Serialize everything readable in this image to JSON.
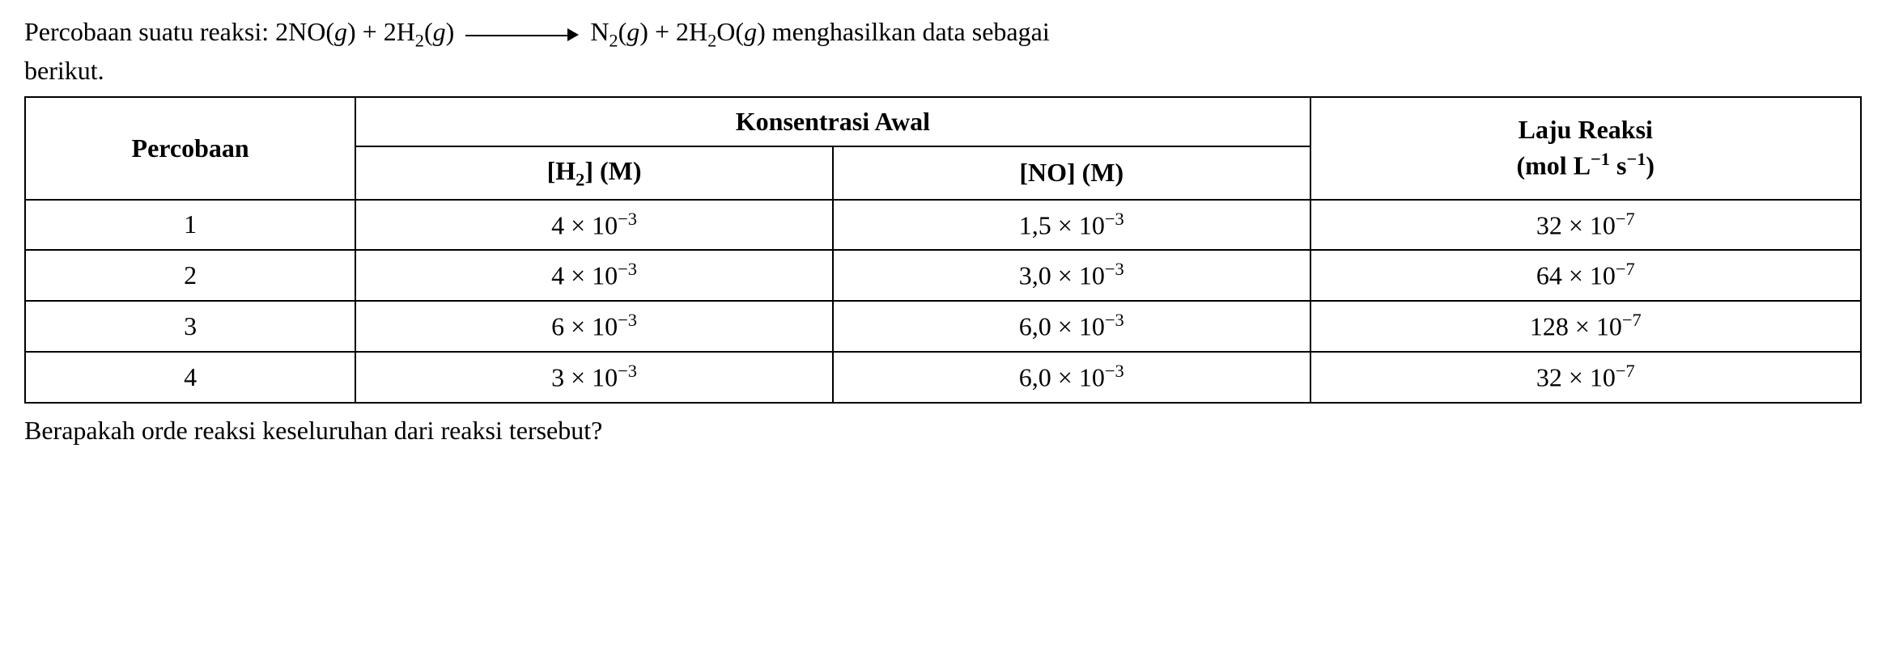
{
  "intro": {
    "lead": "Percobaan suatu reaksi: ",
    "trail": " menghasilkan data sebagai",
    "line2": "berikut."
  },
  "reaction": {
    "r1_coef": "2",
    "r1_sym": "NO",
    "r1_phase": "g",
    "r2_coef": "2",
    "r2_sym": "H",
    "r2_sub": "2",
    "r2_phase": "g",
    "p1_sym": "N",
    "p1_sub": "2",
    "p1_phase": "g",
    "p2_coef": "2",
    "p2_sym": "H",
    "p2_sub": "2",
    "p2_sym2": "O",
    "p2_phase": "g",
    "plus": " + "
  },
  "table": {
    "head_percobaan": "Percobaan",
    "head_konsentrasi": "Konsentrasi Awal",
    "head_h2_open": "[H",
    "head_h2_sub": "2",
    "head_h2_close": "] (M)",
    "head_no": "[NO] (M)",
    "head_rate_l1": "Laju Reaksi",
    "head_rate_l2a": "(mol L",
    "head_rate_exp1": "−1",
    "head_rate_l2b": " s",
    "head_rate_exp2": "−1",
    "head_rate_l2c": ")",
    "rows": [
      {
        "n": "1",
        "h2_m": "4 × 10",
        "h2_e": "−3",
        "no_m": "1,5 × 10",
        "no_e": "−3",
        "r_m": "32 × 10",
        "r_e": "−7"
      },
      {
        "n": "2",
        "h2_m": "4 × 10",
        "h2_e": "−3",
        "no_m": "3,0 × 10",
        "no_e": "−3",
        "r_m": "64 × 10",
        "r_e": "−7"
      },
      {
        "n": "3",
        "h2_m": "6 × 10",
        "h2_e": "−3",
        "no_m": "6,0 × 10",
        "no_e": "−3",
        "r_m": "128 × 10",
        "r_e": "−7"
      },
      {
        "n": "4",
        "h2_m": "3 × 10",
        "h2_e": "−3",
        "no_m": "6,0 × 10",
        "no_e": "−3",
        "r_m": "32 × 10",
        "r_e": "−7"
      }
    ]
  },
  "question": "Berapakah orde reaksi keseluruhan dari reaksi tersebut?"
}
